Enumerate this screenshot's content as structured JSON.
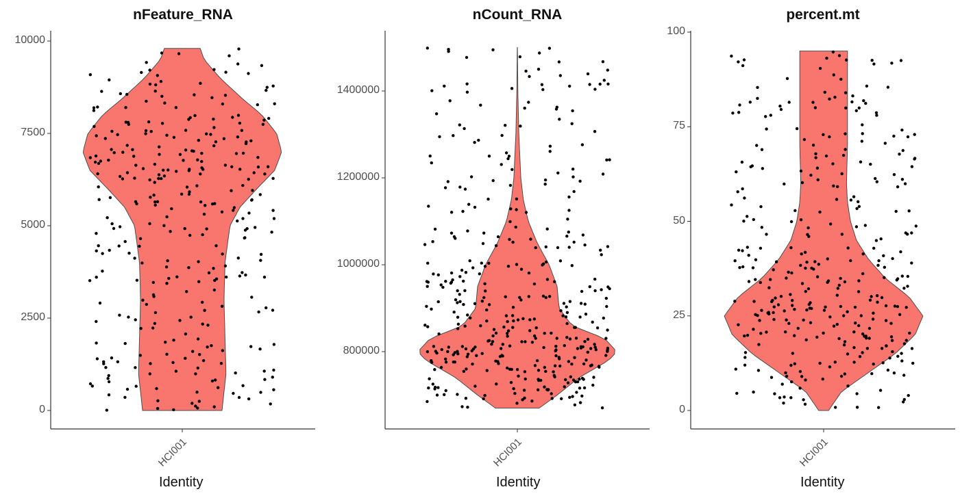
{
  "colors": {
    "violin_fill": "#F8766D",
    "violin_stroke": "#4d4d4d",
    "point": "#000000",
    "axis": "#333333"
  },
  "chart_data": [
    {
      "type": "violin",
      "title": "nFeature_RNA",
      "xlabel": "Identity",
      "ylabel": "",
      "categories": [
        "HCI001"
      ],
      "ylim": [
        0,
        10000
      ],
      "yticks": [
        0,
        2500,
        5000,
        7500,
        10000
      ],
      "ytick_labels": [
        "0",
        "2500",
        "5000",
        "7500",
        "10000"
      ],
      "grid": false,
      "legend": "none",
      "violin_range": [
        0,
        9800
      ],
      "density": [
        [
          0,
          0.4
        ],
        [
          500,
          0.42
        ],
        [
          1000,
          0.44
        ],
        [
          2000,
          0.43
        ],
        [
          3000,
          0.42
        ],
        [
          4000,
          0.43
        ],
        [
          5000,
          0.48
        ],
        [
          5500,
          0.58
        ],
        [
          6000,
          0.75
        ],
        [
          6500,
          0.93
        ],
        [
          7000,
          1.0
        ],
        [
          7500,
          0.95
        ],
        [
          8000,
          0.8
        ],
        [
          8500,
          0.58
        ],
        [
          9000,
          0.38
        ],
        [
          9500,
          0.22
        ],
        [
          9800,
          0.18
        ]
      ],
      "points_note_seed": 11,
      "points_count": 320
    },
    {
      "type": "violin",
      "title": "nCount_RNA",
      "xlabel": "Identity",
      "ylabel": "",
      "categories": [
        "HCI001"
      ],
      "ylim": [
        650000,
        1520000
      ],
      "yticks": [
        800000,
        1000000,
        1200000,
        1400000
      ],
      "ytick_labels": [
        "800000",
        "1000000",
        "1200000",
        "1400000"
      ],
      "grid": false,
      "legend": "none",
      "violin_range": [
        670000,
        1500000
      ],
      "density": [
        [
          670000,
          0.22
        ],
        [
          700000,
          0.4
        ],
        [
          740000,
          0.62
        ],
        [
          780000,
          0.92
        ],
        [
          800000,
          1.0
        ],
        [
          830000,
          0.88
        ],
        [
          860000,
          0.55
        ],
        [
          900000,
          0.42
        ],
        [
          950000,
          0.4
        ],
        [
          1000000,
          0.32
        ],
        [
          1050000,
          0.2
        ],
        [
          1100000,
          0.11
        ],
        [
          1150000,
          0.06
        ],
        [
          1200000,
          0.035
        ],
        [
          1300000,
          0.015
        ],
        [
          1400000,
          0.005
        ],
        [
          1500000,
          0.001
        ]
      ],
      "points_note_seed": 23,
      "points_count": 400
    },
    {
      "type": "violin",
      "title": "percent.mt",
      "xlabel": "Identity",
      "ylabel": "",
      "categories": [
        "HCI001"
      ],
      "ylim": [
        -2,
        100
      ],
      "yticks": [
        0,
        25,
        50,
        75,
        100
      ],
      "ytick_labels": [
        "0",
        "25",
        "50",
        "75",
        "100"
      ],
      "grid": false,
      "legend": "none",
      "violin_range": [
        0,
        95
      ],
      "density": [
        [
          0,
          0.05
        ],
        [
          5,
          0.18
        ],
        [
          10,
          0.45
        ],
        [
          15,
          0.72
        ],
        [
          20,
          0.92
        ],
        [
          25,
          1.0
        ],
        [
          30,
          0.86
        ],
        [
          35,
          0.62
        ],
        [
          40,
          0.45
        ],
        [
          45,
          0.33
        ],
        [
          50,
          0.27
        ],
        [
          55,
          0.24
        ],
        [
          60,
          0.23
        ],
        [
          70,
          0.24
        ],
        [
          80,
          0.24
        ],
        [
          90,
          0.24
        ],
        [
          95,
          0.24
        ]
      ],
      "points_note_seed": 37,
      "points_count": 340
    }
  ]
}
